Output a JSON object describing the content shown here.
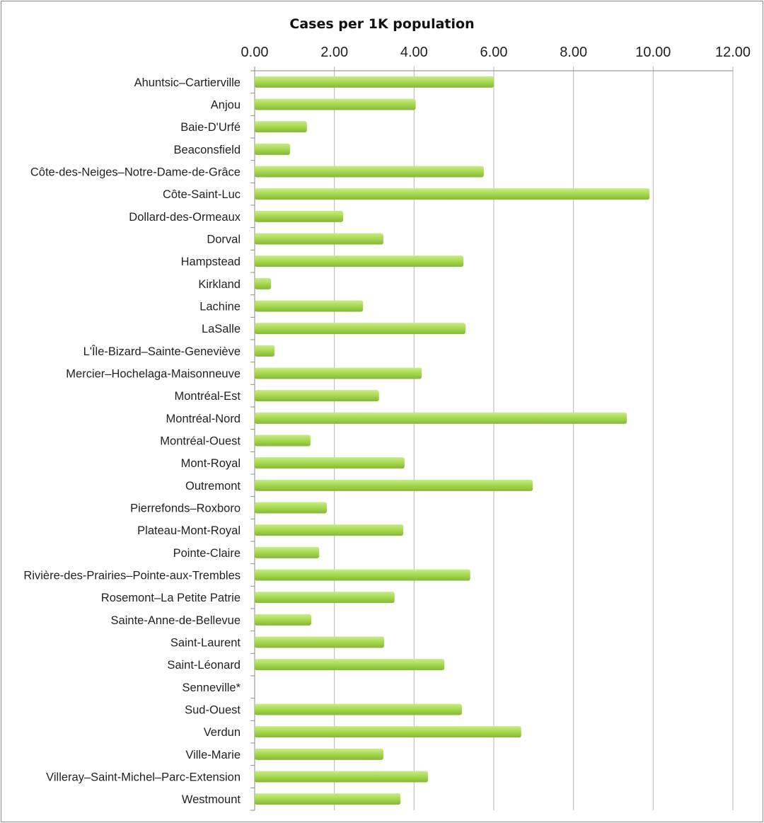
{
  "chart_data": {
    "type": "bar",
    "orientation": "horizontal",
    "title": "Cases per 1K population",
    "xlabel": "",
    "ylabel": "",
    "xlim": [
      0,
      12
    ],
    "x_ticks": [
      "0.00",
      "2.00",
      "4.00",
      "6.00",
      "8.00",
      "10.00",
      "12.00"
    ],
    "x_axis_position": "top",
    "grid": true,
    "legend": "none",
    "bar_color": "#a6d84e",
    "categories": [
      "Ahuntsic–Cartierville",
      "Anjou",
      "Baie-D'Urfé",
      "Beaconsfield",
      "Côte-des-Neiges–Notre-Dame-de-Grâce",
      "Côte-Saint-Luc",
      "Dollard-des-Ormeaux",
      "Dorval",
      "Hampstead",
      "Kirkland",
      "Lachine",
      "LaSalle",
      "L'Île-Bizard–Sainte-Geneviève",
      "Mercier–Hochelaga-Maisonneuve",
      "Montréal-Est",
      "Montréal-Nord",
      "Montréal-Ouest",
      "Mont-Royal",
      "Outremont",
      "Pierrefonds–Roxboro",
      "Plateau-Mont-Royal",
      "Pointe-Claire",
      "Rivière-des-Prairies–Pointe-aux-Trembles",
      "Rosemont–La Petite Patrie",
      "Sainte-Anne-de-Bellevue",
      "Saint-Laurent",
      "Saint-Léonard",
      "Senneville*",
      "Sud-Ouest",
      "Verdun",
      "Ville-Marie",
      "Villeray–Saint-Michel–Parc-Extension",
      "Westmount"
    ],
    "values": [
      6.0,
      4.04,
      1.31,
      0.89,
      5.75,
      9.91,
      2.22,
      3.23,
      5.24,
      0.41,
      2.72,
      5.29,
      0.5,
      4.19,
      3.12,
      9.34,
      1.4,
      3.76,
      6.98,
      1.81,
      3.73,
      1.62,
      5.41,
      3.51,
      1.42,
      3.25,
      4.76,
      0,
      5.2,
      6.69,
      3.23,
      4.35,
      3.66
    ]
  }
}
